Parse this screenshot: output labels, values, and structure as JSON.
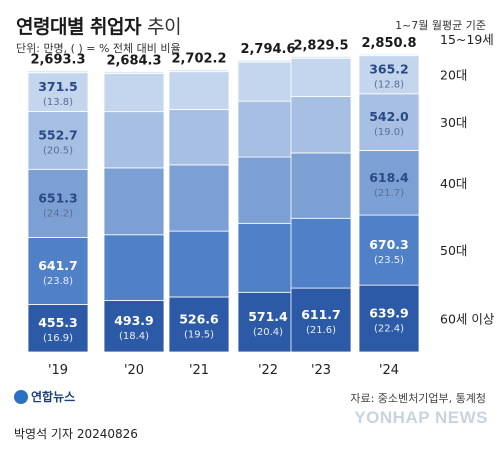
{
  "header": {
    "title_main": "연령대별 취업자",
    "title_sub": "추이",
    "period": "1~7월 월평균 기준",
    "unit": "단위: 만명, ( ) = % 전체 대비 비율"
  },
  "footer": {
    "source": "자료: 중소벤처기업부, 통계청",
    "credit": "박영석 기자  20240826",
    "logo_text": "연합뉴스",
    "watermark": "YONHAP NEWS"
  },
  "colors": {
    "60+": "#2d5aa6",
    "50s": "#4f80c8",
    "40s": "#7c9fd4",
    "30s": "#a7bfe3",
    "20s": "#c4d5ee",
    "15-19": "#dfe8f6"
  },
  "chart_data": {
    "type": "bar",
    "stacked": true,
    "categories": [
      "'19",
      "'20",
      "'21",
      "'22",
      "'23",
      "'24"
    ],
    "totals": [
      2693.3,
      2684.3,
      2702.2,
      2794.6,
      2829.5,
      2850.8
    ],
    "series": [
      {
        "name": "60세 이상",
        "values": [
          455.3,
          493.9,
          526.6,
          571.4,
          611.7,
          639.9
        ],
        "pct": [
          16.9,
          18.4,
          19.5,
          20.4,
          21.6,
          22.4
        ]
      },
      {
        "name": "50대",
        "values": [
          641.7,
          628.0,
          630.0,
          660.0,
          668.0,
          670.3
        ],
        "pct": [
          23.8,
          null,
          null,
          null,
          null,
          23.5
        ]
      },
      {
        "name": "40대",
        "values": [
          651.3,
          640.0,
          634.0,
          634.0,
          625.0,
          618.4
        ],
        "pct": [
          24.2,
          null,
          null,
          null,
          null,
          21.7
        ]
      },
      {
        "name": "30대",
        "values": [
          552.7,
          538.0,
          530.0,
          535.0,
          540.0,
          542.0
        ],
        "pct": [
          20.5,
          null,
          null,
          null,
          null,
          19.0
        ]
      },
      {
        "name": "20대",
        "values": [
          371.5,
          364.0,
          362.0,
          374.0,
          366.0,
          365.2
        ],
        "pct": [
          13.8,
          null,
          null,
          null,
          null,
          12.8
        ]
      },
      {
        "name": "15~19세",
        "values": [
          20.8,
          20.4,
          19.6,
          20.2,
          18.8,
          15.0
        ],
        "pct": [
          null,
          null,
          null,
          null,
          null,
          null
        ]
      }
    ],
    "labels": [
      {
        "bar": 0,
        "series": 0,
        "value": "455.3",
        "pct": "(16.9)"
      },
      {
        "bar": 0,
        "series": 1,
        "value": "641.7",
        "pct": "(23.8)"
      },
      {
        "bar": 0,
        "series": 2,
        "value": "651.3",
        "pct": "(24.2)"
      },
      {
        "bar": 0,
        "series": 3,
        "value": "552.7",
        "pct": "(20.5)"
      },
      {
        "bar": 0,
        "series": 4,
        "value": "371.5",
        "pct": "(13.8)"
      },
      {
        "bar": 1,
        "series": 0,
        "value": "493.9",
        "pct": "(18.4)"
      },
      {
        "bar": 2,
        "series": 0,
        "value": "526.6",
        "pct": "(19.5)"
      },
      {
        "bar": 3,
        "series": 0,
        "value": "571.4",
        "pct": "(20.4)"
      },
      {
        "bar": 4,
        "series": 0,
        "value": "611.7",
        "pct": "(21.6)"
      },
      {
        "bar": 5,
        "series": 0,
        "value": "639.9",
        "pct": "(22.4)"
      },
      {
        "bar": 5,
        "series": 1,
        "value": "670.3",
        "pct": "(23.5)"
      },
      {
        "bar": 5,
        "series": 2,
        "value": "618.4",
        "pct": "(21.7)"
      },
      {
        "bar": 5,
        "series": 3,
        "value": "542.0",
        "pct": "(19.0)"
      },
      {
        "bar": 5,
        "series": 4,
        "value": "365.2",
        "pct": "(12.8)"
      }
    ],
    "total_labels": [
      "2,693.3",
      "2,684.3",
      "2,702.2",
      "2,794.6",
      "2,829.5",
      "2,850.8"
    ]
  }
}
